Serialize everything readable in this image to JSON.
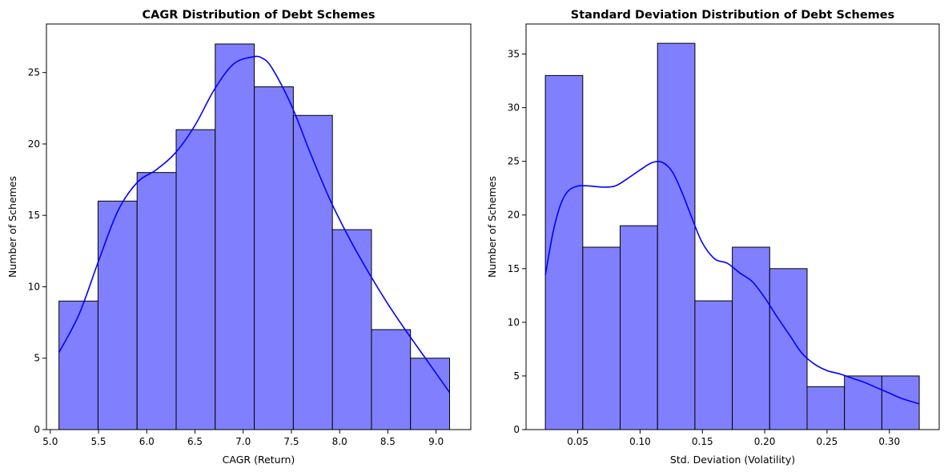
{
  "chart_data": [
    {
      "type": "bar",
      "subtype": "histogram",
      "title": "CAGR Distribution of Debt Schemes",
      "xlabel": "CAGR (Return)",
      "ylabel": "Number of Schemes",
      "bin_edges": [
        5.09,
        5.495,
        5.9,
        6.305,
        6.71,
        7.115,
        7.52,
        7.925,
        8.33,
        8.735,
        9.14
      ],
      "values": [
        9,
        16,
        18,
        21,
        27,
        24,
        22,
        14,
        7,
        5
      ],
      "xlim": [
        4.96,
        9.36
      ],
      "ylim": [
        0,
        28.4
      ],
      "xticks": [
        "5.0",
        "5.5",
        "6.0",
        "6.5",
        "7.0",
        "7.5",
        "8.0",
        "8.5",
        "9.0"
      ],
      "yticks": [
        "0",
        "5",
        "10",
        "15",
        "20",
        "25"
      ],
      "bar_color": "#8080ff",
      "kde_color": "#0000ff",
      "kde": {
        "x": [
          5.09,
          5.3,
          5.5,
          5.7,
          5.9,
          6.1,
          6.3,
          6.5,
          6.7,
          6.9,
          7.1,
          7.2,
          7.3,
          7.5,
          7.7,
          7.9,
          8.1,
          8.3,
          8.5,
          8.7,
          8.9,
          9.14
        ],
        "y": [
          5.4,
          8.1,
          11.8,
          15.3,
          17.3,
          18.2,
          19.4,
          21.3,
          23.8,
          25.6,
          26.1,
          26.0,
          25.3,
          22.7,
          19.3,
          16.1,
          13.4,
          11.0,
          8.8,
          6.8,
          4.9,
          2.6
        ]
      },
      "grid": false
    },
    {
      "type": "bar",
      "subtype": "histogram",
      "title": "Standard Deviation Distribution of Debt Schemes",
      "xlabel": "Std. Deviation (Volatility)",
      "ylabel": "Number of Schemes",
      "bin_edges": [
        0.024,
        0.054,
        0.084,
        0.114,
        0.144,
        0.174,
        0.204,
        0.234,
        0.264,
        0.294,
        0.324
      ],
      "values": [
        33,
        17,
        19,
        36,
        12,
        17,
        15,
        4,
        5,
        5
      ],
      "xlim": [
        0.0085,
        0.34
      ],
      "ylim": [
        0,
        37.8
      ],
      "xticks": [
        "0.05",
        "0.10",
        "0.15",
        "0.20",
        "0.25",
        "0.30"
      ],
      "yticks": [
        "0",
        "5",
        "10",
        "15",
        "20",
        "25",
        "30",
        "35"
      ],
      "bar_color": "#8080ff",
      "kde_color": "#0000ff",
      "kde": {
        "x": [
          0.024,
          0.03,
          0.036,
          0.042,
          0.05,
          0.06,
          0.07,
          0.08,
          0.09,
          0.1,
          0.11,
          0.118,
          0.126,
          0.134,
          0.142,
          0.15,
          0.16,
          0.17,
          0.18,
          0.19,
          0.2,
          0.21,
          0.22,
          0.23,
          0.24,
          0.25,
          0.26,
          0.27,
          0.28,
          0.29,
          0.3,
          0.31,
          0.324
        ],
        "y": [
          14.4,
          18.3,
          20.9,
          22.2,
          22.7,
          22.7,
          22.6,
          22.7,
          23.4,
          24.2,
          24.9,
          24.9,
          24.0,
          22.0,
          19.6,
          17.4,
          15.9,
          15.5,
          14.6,
          13.8,
          12.3,
          10.5,
          8.8,
          7.1,
          6.1,
          5.5,
          5.2,
          4.8,
          4.4,
          3.9,
          3.4,
          2.9,
          2.4
        ]
      },
      "grid": false
    }
  ]
}
